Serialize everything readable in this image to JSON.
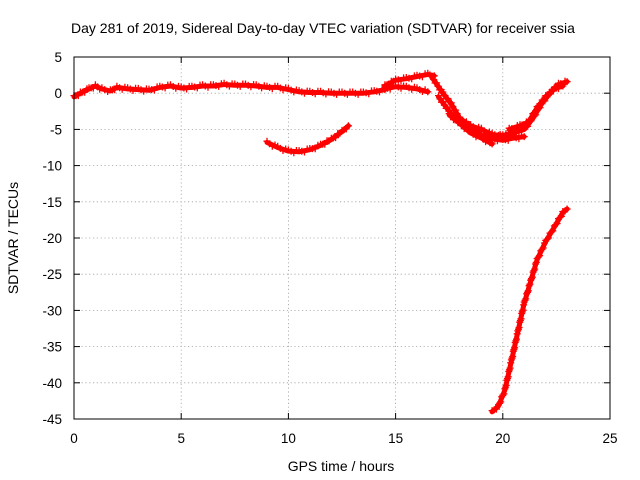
{
  "chart_data": {
    "type": "scatter",
    "title": "Day 281 of 2019, Sidereal Day-to-day VTEC variation (SDTVAR) for receiver ssia",
    "xlabel": "GPS time / hours",
    "ylabel": "SDTVAR / TECUs",
    "xlim": [
      0,
      25
    ],
    "ylim": [
      -45,
      5
    ],
    "xticks": [
      0,
      5,
      10,
      15,
      20,
      25
    ],
    "yticks": [
      5,
      0,
      -5,
      -10,
      -15,
      -20,
      -25,
      -30,
      -35,
      -40,
      -45
    ],
    "grid": true,
    "marker": "plus",
    "color": "#ff0000",
    "series": [
      {
        "name": "arc-main-early",
        "points": [
          [
            0.0,
            -0.5
          ],
          [
            0.3,
            0.0
          ],
          [
            0.7,
            0.6
          ],
          [
            1.0,
            1.0
          ],
          [
            1.3,
            0.6
          ],
          [
            1.7,
            0.3
          ],
          [
            2.0,
            0.8
          ],
          [
            2.5,
            0.6
          ],
          [
            3.0,
            0.5
          ],
          [
            3.5,
            0.4
          ],
          [
            4.0,
            0.8
          ],
          [
            4.5,
            1.0
          ],
          [
            5.0,
            0.7
          ],
          [
            5.5,
            0.8
          ],
          [
            6.0,
            1.0
          ],
          [
            6.5,
            1.0
          ],
          [
            7.0,
            1.2
          ],
          [
            7.5,
            1.1
          ],
          [
            8.0,
            1.1
          ],
          [
            8.5,
            1.0
          ],
          [
            9.0,
            0.8
          ],
          [
            9.5,
            0.8
          ],
          [
            10.0,
            0.5
          ],
          [
            10.5,
            0.2
          ],
          [
            11.0,
            0.1
          ],
          [
            11.5,
            0.1
          ],
          [
            12.0,
            0.0
          ],
          [
            12.5,
            0.0
          ],
          [
            13.0,
            0.0
          ],
          [
            13.5,
            0.0
          ],
          [
            14.0,
            0.2
          ],
          [
            14.5,
            0.5
          ]
        ]
      },
      {
        "name": "arc-afternoon-a",
        "points": [
          [
            14.5,
            1.0
          ],
          [
            15.0,
            1.8
          ],
          [
            15.5,
            2.0
          ],
          [
            16.0,
            2.3
          ],
          [
            16.5,
            2.6
          ],
          [
            16.8,
            2.4
          ]
        ]
      },
      {
        "name": "arc-afternoon-b",
        "points": [
          [
            14.5,
            0.6
          ],
          [
            15.0,
            0.9
          ],
          [
            15.5,
            0.8
          ],
          [
            16.0,
            0.6
          ],
          [
            16.5,
            0.2
          ]
        ]
      },
      {
        "name": "arc-dip-a",
        "points": [
          [
            16.7,
            2.2
          ],
          [
            17.2,
            0.0
          ],
          [
            17.6,
            -1.5
          ],
          [
            18.0,
            -3.5
          ],
          [
            18.5,
            -4.5
          ],
          [
            19.0,
            -5.0
          ],
          [
            19.5,
            -5.7
          ],
          [
            20.0,
            -5.9
          ],
          [
            20.5,
            -5.6
          ]
        ]
      },
      {
        "name": "arc-dip-b",
        "points": [
          [
            17.0,
            -0.5
          ],
          [
            17.5,
            -2.5
          ],
          [
            18.0,
            -4.2
          ],
          [
            18.5,
            -5.0
          ],
          [
            19.0,
            -5.8
          ],
          [
            19.5,
            -6.3
          ],
          [
            20.0,
            -6.5
          ],
          [
            20.5,
            -6.2
          ],
          [
            21.0,
            -6.0
          ]
        ]
      },
      {
        "name": "arc-dip-c",
        "points": [
          [
            17.5,
            -3.0
          ],
          [
            18.0,
            -4.2
          ],
          [
            18.5,
            -5.5
          ],
          [
            19.0,
            -6.2
          ],
          [
            19.5,
            -7.0
          ]
        ]
      },
      {
        "name": "arc-recovery-a",
        "points": [
          [
            19.8,
            -6.0
          ],
          [
            20.5,
            -5.5
          ],
          [
            21.0,
            -5.0
          ],
          [
            21.4,
            -3.5
          ],
          [
            21.8,
            -1.5
          ],
          [
            22.2,
            0.0
          ],
          [
            22.6,
            1.2
          ],
          [
            23.0,
            1.6
          ]
        ]
      },
      {
        "name": "arc-recovery-b",
        "points": [
          [
            20.3,
            -5.0
          ],
          [
            20.8,
            -4.5
          ],
          [
            21.2,
            -4.0
          ],
          [
            21.6,
            -2.0
          ],
          [
            22.0,
            -0.5
          ],
          [
            22.4,
            0.6
          ],
          [
            22.8,
            1.0
          ]
        ]
      },
      {
        "name": "arc-night",
        "points": [
          [
            9.0,
            -6.8
          ],
          [
            9.5,
            -7.5
          ],
          [
            10.0,
            -8.0
          ],
          [
            10.5,
            -8.1
          ],
          [
            11.0,
            -7.8
          ],
          [
            11.5,
            -7.2
          ],
          [
            12.0,
            -6.4
          ],
          [
            12.5,
            -5.3
          ],
          [
            12.8,
            -4.5
          ]
        ]
      },
      {
        "name": "arc-steep",
        "points": [
          [
            19.5,
            -44.0
          ],
          [
            19.8,
            -43.2
          ],
          [
            20.1,
            -41.0
          ],
          [
            20.4,
            -37.0
          ],
          [
            20.7,
            -33.0
          ],
          [
            21.0,
            -29.0
          ],
          [
            21.3,
            -26.0
          ],
          [
            21.6,
            -23.0
          ],
          [
            22.0,
            -20.5
          ],
          [
            22.4,
            -18.5
          ],
          [
            22.8,
            -16.5
          ],
          [
            23.0,
            -16.0
          ]
        ]
      }
    ]
  }
}
